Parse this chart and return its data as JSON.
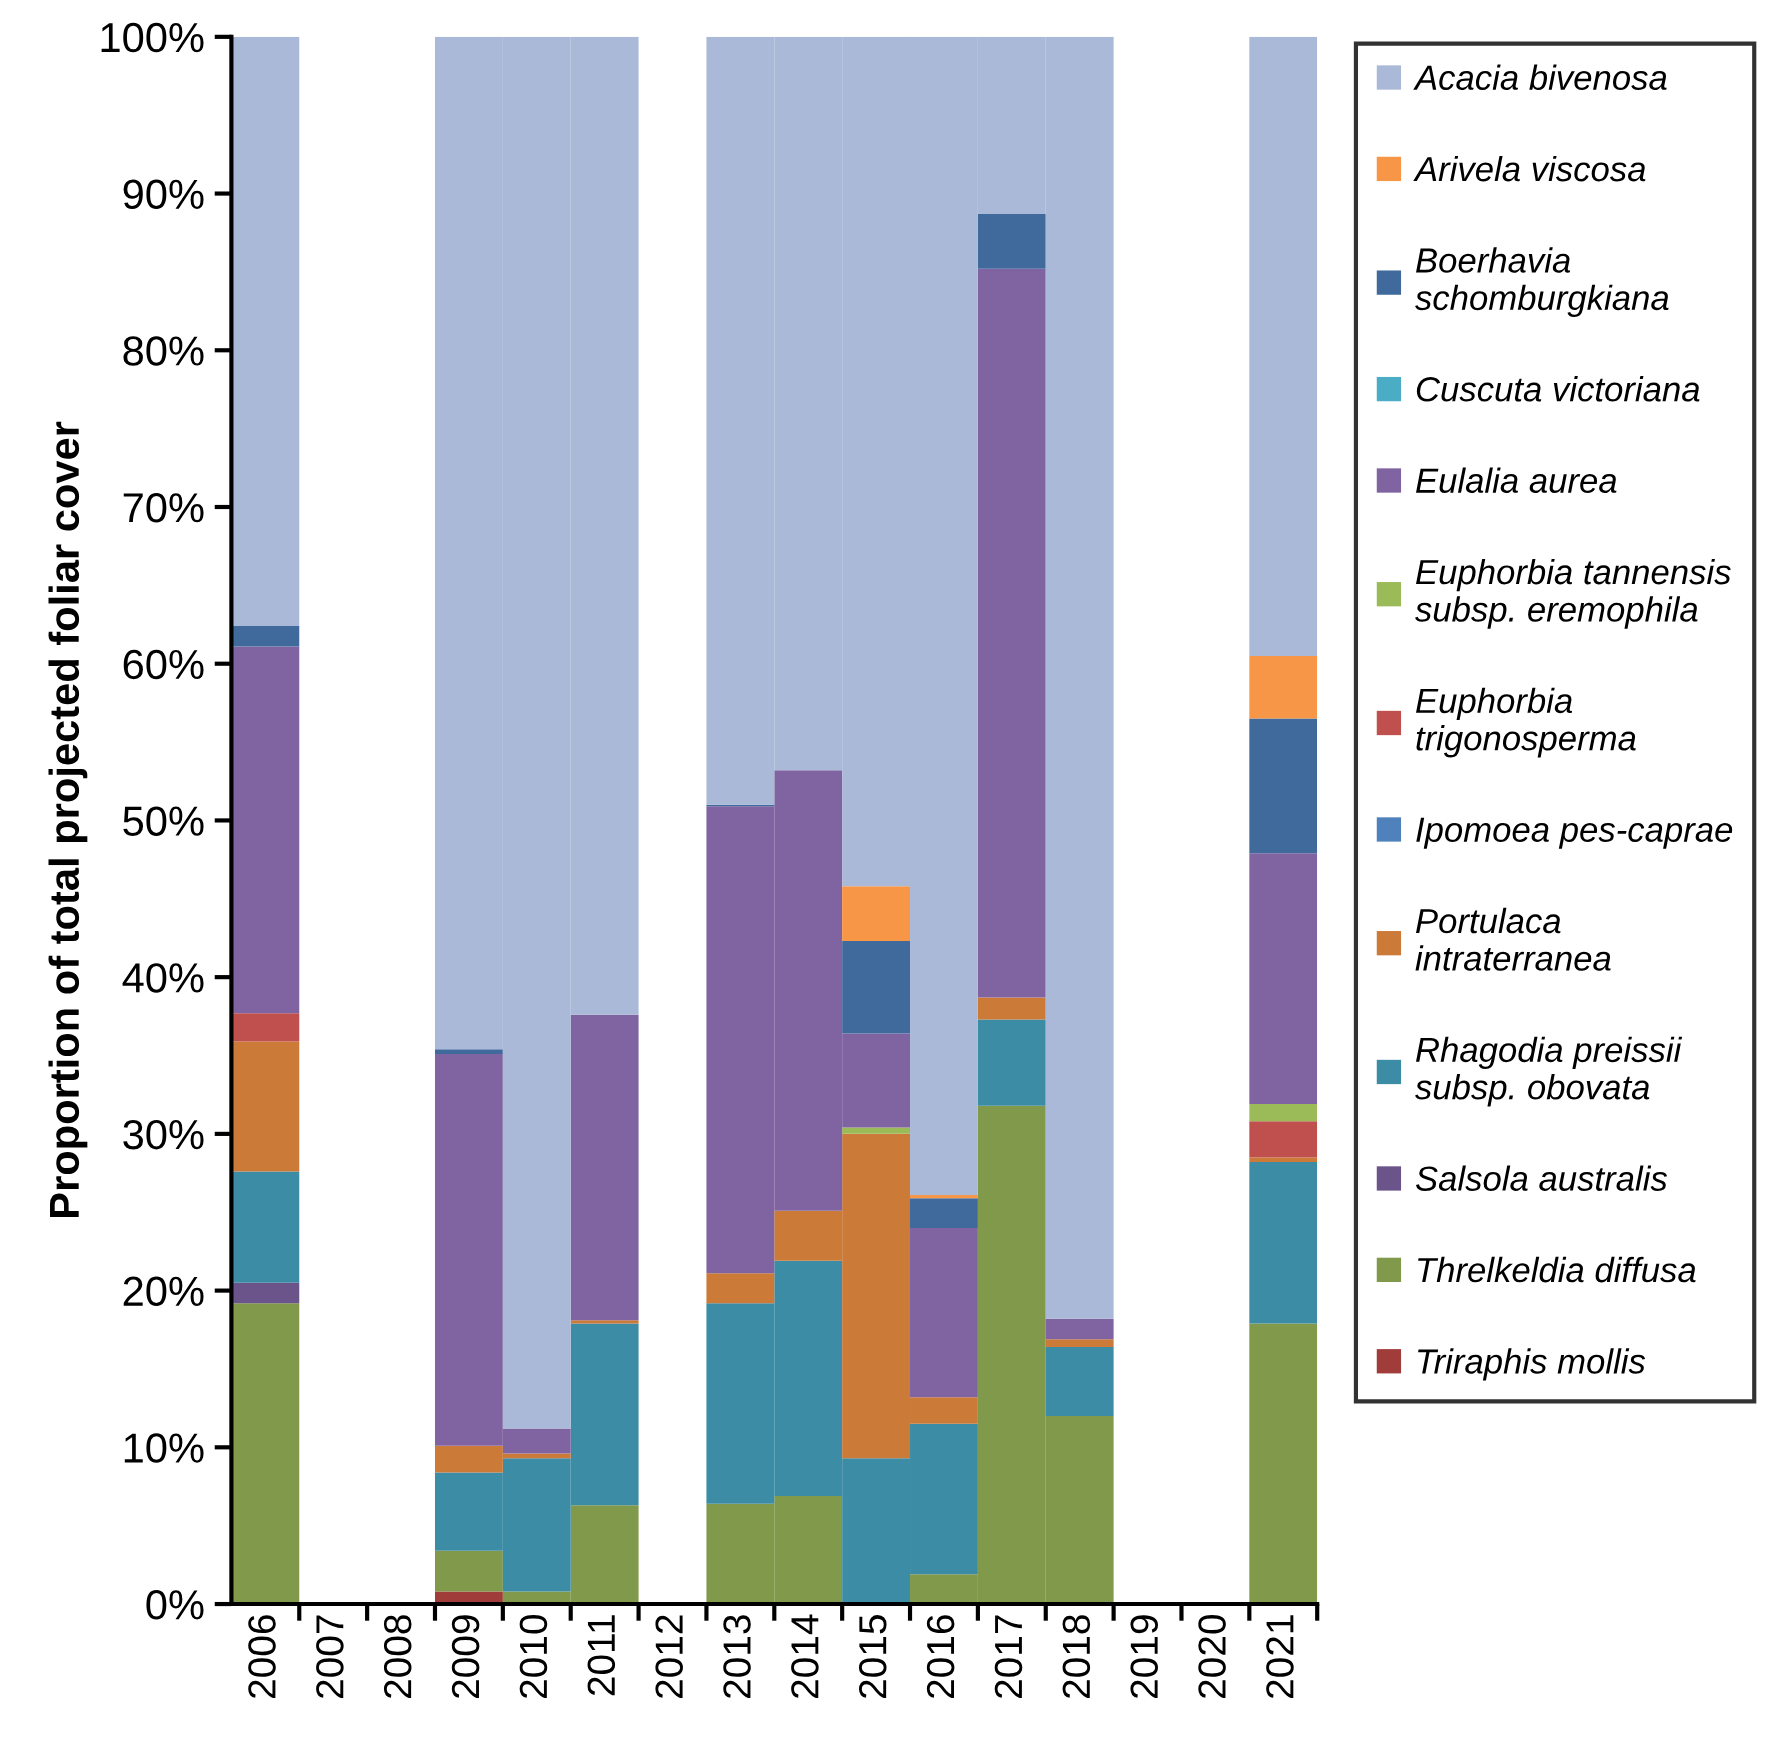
{
  "chart_data": {
    "type": "bar",
    "stacked": true,
    "ylabel": "Proportion of total projected foliar cover",
    "categories": [
      "2006",
      "2007",
      "2008",
      "2009",
      "2010",
      "2011",
      "2012",
      "2013",
      "2014",
      "2015",
      "2016",
      "2017",
      "2018",
      "2019",
      "2020",
      "2021"
    ],
    "ylim": [
      0,
      100
    ],
    "yticks": [
      {
        "value": 0,
        "label": "0%"
      },
      {
        "value": 10,
        "label": "10%"
      },
      {
        "value": 20,
        "label": "20%"
      },
      {
        "value": 30,
        "label": "30%"
      },
      {
        "value": 40,
        "label": "40%"
      },
      {
        "value": 50,
        "label": "50%"
      },
      {
        "value": 60,
        "label": "60%"
      },
      {
        "value": 70,
        "label": "70%"
      },
      {
        "value": 80,
        "label": "80%"
      },
      {
        "value": 90,
        "label": "90%"
      },
      {
        "value": 100,
        "label": "100%"
      }
    ],
    "grid": false,
    "legend": "right",
    "series": [
      {
        "name": "Triraphis mollis",
        "color": "#a03c3a",
        "values": [
          0,
          0,
          0,
          0.8,
          0,
          0,
          0,
          0,
          0,
          0,
          0,
          0,
          0,
          0,
          0,
          0
        ]
      },
      {
        "name": "Threlkeldia diffusa",
        "color": "#80994a",
        "values": [
          19.2,
          0,
          0,
          2.6,
          0.8,
          6.3,
          0,
          6.4,
          6.9,
          0,
          1.9,
          31.8,
          12.0,
          0,
          0,
          17.9
        ]
      },
      {
        "name": "Salsola australis",
        "color": "#6b548a",
        "values": [
          1.3,
          0,
          0,
          0,
          0,
          0,
          0,
          0,
          0,
          0,
          0,
          0,
          0,
          0,
          0,
          0
        ]
      },
      {
        "name": "Rhagodia preissii subsp. obovata",
        "color": "#3c8ca5",
        "values": [
          7.1,
          0,
          0,
          5.0,
          8.5,
          11.6,
          0,
          12.8,
          15.0,
          9.3,
          9.6,
          5.5,
          4.4,
          0,
          0,
          10.3
        ]
      },
      {
        "name": "Portulaca intraterranea",
        "color": "#cc7a38",
        "values": [
          8.3,
          0,
          0,
          1.7,
          0.3,
          0.2,
          0,
          1.9,
          3.2,
          20.7,
          1.7,
          1.4,
          0.5,
          0,
          0,
          0.3
        ]
      },
      {
        "name": "Ipomoea pes-caprae",
        "color": "#4f81bd",
        "values": [
          0,
          0,
          0,
          0,
          0,
          0,
          0,
          0,
          0,
          0,
          0,
          0,
          0,
          0,
          0,
          0
        ]
      },
      {
        "name": "Euphorbia trigonosperma",
        "color": "#c0504d",
        "values": [
          1.8,
          0,
          0,
          0,
          0,
          0,
          0,
          0,
          0,
          0,
          0,
          0,
          0,
          0,
          0,
          2.3
        ]
      },
      {
        "name": "Euphorbia tannensis subsp. eremophila",
        "color": "#9bbb59",
        "values": [
          0,
          0,
          0,
          0,
          0,
          0,
          0,
          0,
          0,
          0.4,
          0,
          0,
          0,
          0,
          0,
          1.1
        ]
      },
      {
        "name": "Eulalia aurea",
        "color": "#8064a2",
        "values": [
          23.4,
          0,
          0,
          25.0,
          1.6,
          19.5,
          0,
          29.8,
          28.1,
          6.0,
          10.8,
          46.5,
          1.3,
          0,
          0,
          16.0
        ]
      },
      {
        "name": "Cuscuta victoriana",
        "color": "#4bacc6",
        "values": [
          0,
          0,
          0,
          0,
          0,
          0,
          0,
          0,
          0,
          0,
          0,
          0,
          0,
          0,
          0,
          0
        ]
      },
      {
        "name": "Boerhavia schomburgkiana",
        "color": "#3f6a9b",
        "values": [
          1.3,
          0,
          0,
          0.3,
          0,
          0,
          0,
          0.1,
          0,
          5.9,
          1.9,
          3.5,
          0,
          0,
          0,
          8.6
        ]
      },
      {
        "name": "Arivela viscosa",
        "color": "#f79646",
        "values": [
          0,
          0,
          0,
          0,
          0,
          0,
          0,
          0,
          0,
          3.5,
          0.2,
          0,
          0,
          0,
          0,
          4.0
        ]
      },
      {
        "name": "Acacia bivenosa",
        "color": "#aab9d7",
        "values": [
          37.6,
          0,
          0,
          64.6,
          88.8,
          62.4,
          0,
          49.0,
          46.8,
          54.2,
          73.9,
          11.3,
          81.8,
          0,
          0,
          39.5
        ]
      }
    ]
  }
}
